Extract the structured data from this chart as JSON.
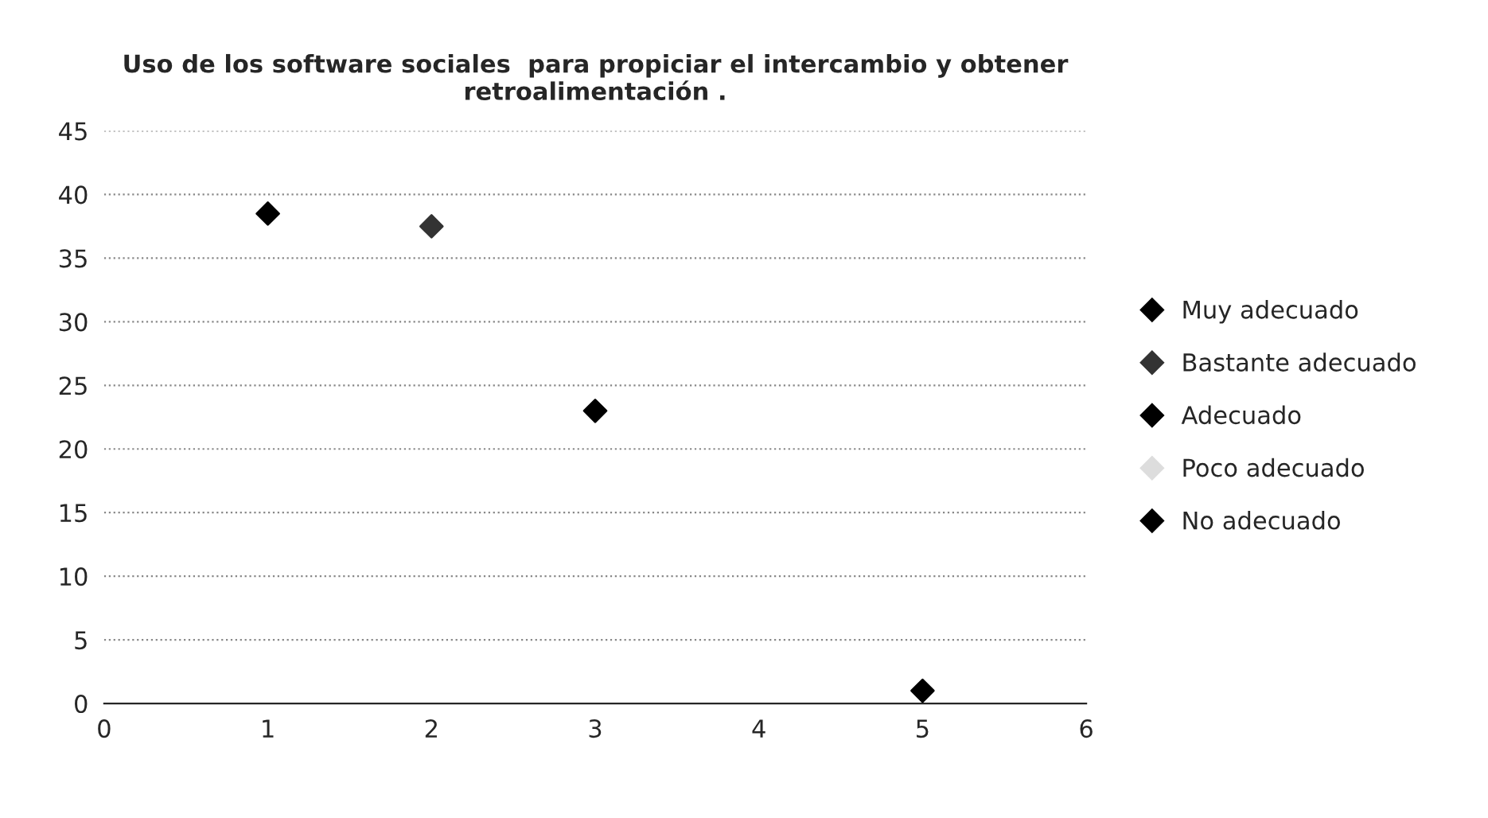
{
  "chart_data": {
    "type": "scatter",
    "title": "Uso de los software sociales  para propiciar el intercambio y obtener\nretroalimentación .",
    "x": [
      1,
      2,
      3,
      4,
      5
    ],
    "series": [
      {
        "name": "Muy adecuado",
        "color": "#000000",
        "values": [
          38.5,
          null,
          null,
          null,
          null
        ]
      },
      {
        "name": "Bastante adecuado",
        "color": "#333333",
        "values": [
          null,
          37.5,
          null,
          null,
          null
        ]
      },
      {
        "name": "Adecuado",
        "color": "#000000",
        "values": [
          null,
          null,
          23,
          null,
          null
        ]
      },
      {
        "name": "Poco adecuado",
        "color": "#dddddd",
        "values": [
          null,
          null,
          null,
          null,
          null
        ]
      },
      {
        "name": "No adecuado",
        "color": "#000000",
        "values": [
          null,
          null,
          null,
          null,
          1
        ]
      }
    ],
    "xlim": [
      0,
      6
    ],
    "xticks": [
      0,
      1,
      2,
      3,
      4,
      5,
      6
    ],
    "ylim": [
      0,
      45
    ],
    "yticks": [
      0,
      5,
      10,
      15,
      20,
      25,
      30,
      35,
      40,
      45
    ],
    "grid": "y",
    "legend": "right",
    "marker": "diamond"
  }
}
